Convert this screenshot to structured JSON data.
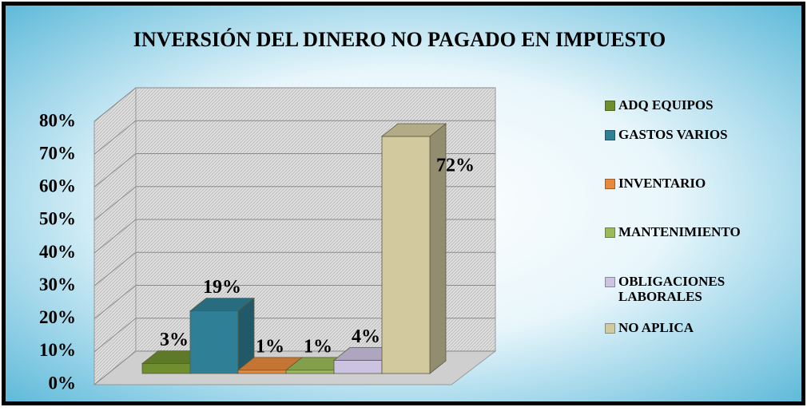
{
  "chart_data": {
    "type": "bar3d",
    "title": "INVERSIÓN DEL DINERO NO PAGADO EN IMPUESTO",
    "categories": [
      "ADQ EQUIPOS",
      "GASTOS VARIOS",
      "INVENTARIO",
      "MANTENIMIENTO",
      "OBLIGACIONES LABORALES",
      "NO APLICA"
    ],
    "values": [
      3,
      19,
      1,
      1,
      4,
      72
    ],
    "value_labels": [
      "3%",
      "19%",
      "1%",
      "1%",
      "4%",
      "72%"
    ],
    "colors": [
      "#6f8f2f",
      "#2f7f96",
      "#e88a3c",
      "#9bbb59",
      "#cbc3df",
      "#d2c99f"
    ],
    "ylim": [
      0,
      80
    ],
    "yticks": [
      {
        "value": 0,
        "label": "0%"
      },
      {
        "value": 10,
        "label": "10%"
      },
      {
        "value": 20,
        "label": "20%"
      },
      {
        "value": 30,
        "label": "30%"
      },
      {
        "value": 40,
        "label": "40%"
      },
      {
        "value": 50,
        "label": "50%"
      },
      {
        "value": 60,
        "label": "60%"
      },
      {
        "value": 70,
        "label": "70%"
      },
      {
        "value": 80,
        "label": "80%"
      }
    ],
    "grid": true,
    "legend": "right"
  }
}
